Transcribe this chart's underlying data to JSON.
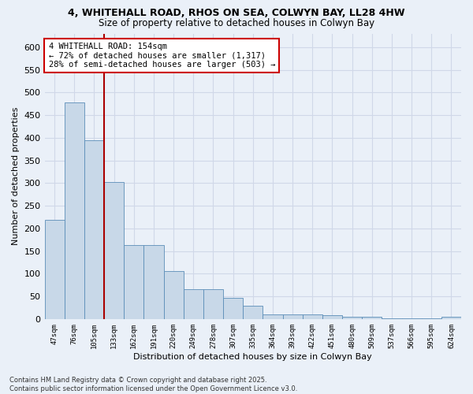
{
  "title1": "4, WHITEHALL ROAD, RHOS ON SEA, COLWYN BAY, LL28 4HW",
  "title2": "Size of property relative to detached houses in Colwyn Bay",
  "xlabel": "Distribution of detached houses by size in Colwyn Bay",
  "ylabel": "Number of detached properties",
  "categories": [
    "47sqm",
    "76sqm",
    "105sqm",
    "133sqm",
    "162sqm",
    "191sqm",
    "220sqm",
    "249sqm",
    "278sqm",
    "307sqm",
    "335sqm",
    "364sqm",
    "393sqm",
    "422sqm",
    "451sqm",
    "480sqm",
    "509sqm",
    "537sqm",
    "566sqm",
    "595sqm",
    "624sqm"
  ],
  "values": [
    218,
    478,
    395,
    302,
    163,
    163,
    105,
    65,
    65,
    47,
    30,
    10,
    10,
    10,
    9,
    5,
    5,
    2,
    2,
    2,
    5
  ],
  "bar_color": "#c8d8e8",
  "bar_edge_color": "#5b8db8",
  "bg_color": "#eaf0f8",
  "grid_color": "#d0d8e8",
  "vline_x": 2.5,
  "vline_color": "#aa0000",
  "annotation_title": "4 WHITEHALL ROAD: 154sqm",
  "annotation_line1": "← 72% of detached houses are smaller (1,317)",
  "annotation_line2": "28% of semi-detached houses are larger (503) →",
  "annotation_box_color": "#cc0000",
  "footer1": "Contains HM Land Registry data © Crown copyright and database right 2025.",
  "footer2": "Contains public sector information licensed under the Open Government Licence v3.0.",
  "ylim": [
    0,
    630
  ],
  "yticks": [
    0,
    50,
    100,
    150,
    200,
    250,
    300,
    350,
    400,
    450,
    500,
    550,
    600
  ]
}
